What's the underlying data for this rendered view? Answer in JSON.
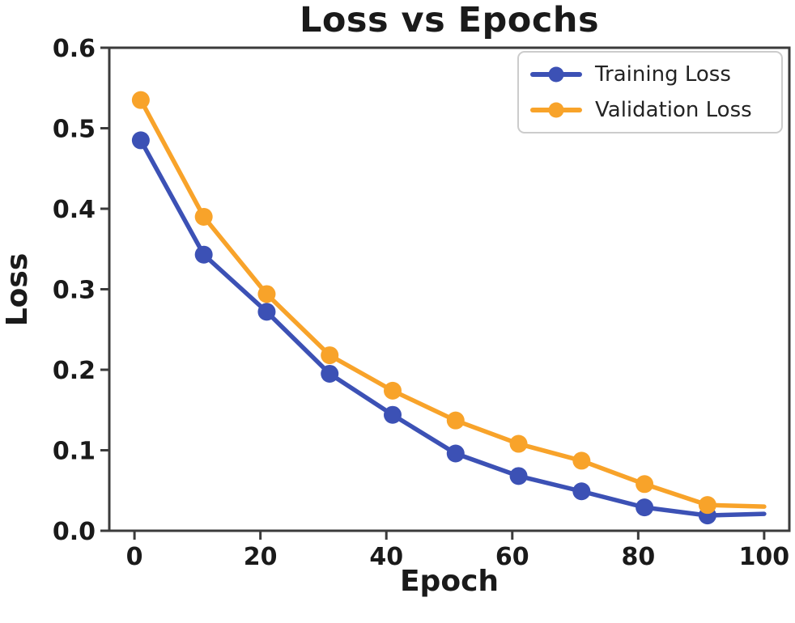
{
  "chart_data": {
    "type": "line",
    "title": "Loss vs Epochs",
    "xlabel": "Epoch",
    "ylabel": "Loss",
    "xlim": [
      -4,
      104
    ],
    "ylim": [
      0,
      0.6
    ],
    "grid": false,
    "xticks": {
      "values": [
        0,
        20,
        40,
        60,
        80,
        100
      ],
      "labels": [
        "0",
        "20",
        "40",
        "60",
        "80",
        "100"
      ]
    },
    "yticks": {
      "values": [
        0.0,
        0.1,
        0.2,
        0.3,
        0.4,
        0.5,
        0.6
      ],
      "labels": [
        "0.0",
        "0.1",
        "0.2",
        "0.3",
        "0.4",
        "0.5",
        "0.6"
      ]
    },
    "x": [
      1,
      11,
      21,
      31,
      41,
      51,
      61,
      71,
      81,
      91,
      100
    ],
    "markers_at_x": [
      1,
      11,
      21,
      31,
      41,
      51,
      61,
      71,
      81,
      91
    ],
    "series": [
      {
        "name": "Training Loss",
        "color": "#3C51B5",
        "marker": "circle",
        "values": [
          0.485,
          0.343,
          0.272,
          0.195,
          0.144,
          0.096,
          0.068,
          0.049,
          0.029,
          0.019,
          0.021
        ]
      },
      {
        "name": "Validation Loss",
        "color": "#F8A32A",
        "marker": "circle",
        "values": [
          0.535,
          0.39,
          0.294,
          0.218,
          0.174,
          0.137,
          0.108,
          0.087,
          0.058,
          0.032,
          0.03
        ]
      }
    ],
    "legend": {
      "position": "upper right"
    },
    "spine_color": "#3b3b3b",
    "text_color": "#1a1a1a"
  }
}
